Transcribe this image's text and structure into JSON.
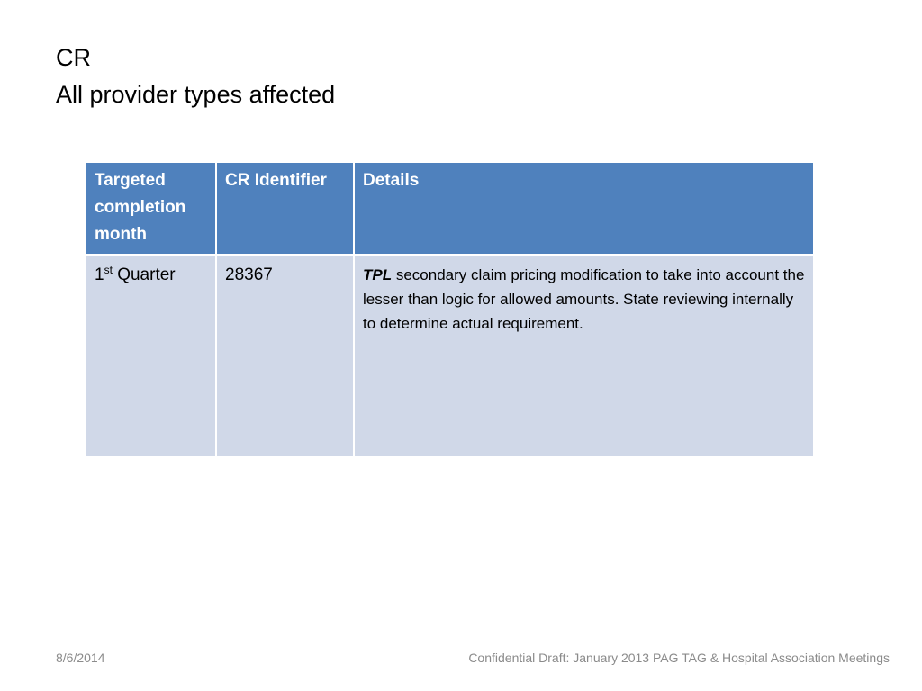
{
  "title": {
    "line1": "CR",
    "line2": "All provider types affected"
  },
  "table": {
    "headers": [
      "Targeted completion month",
      "CR Identifier",
      "Details"
    ],
    "rows": [
      {
        "month": {
          "number": "1",
          "suffix": "st",
          "rest": "Quarter"
        },
        "identifier": "28367",
        "details": {
          "emphasis": "TPL",
          "text": "secondary claim pricing modification to take into account the lesser than logic for allowed amounts. State reviewing internally to determine actual requirement."
        }
      }
    ]
  },
  "footer": {
    "date": "8/6/2014",
    "note": "Confidential Draft: January 2013 PAG TAG & Hospital Association Meetings"
  }
}
